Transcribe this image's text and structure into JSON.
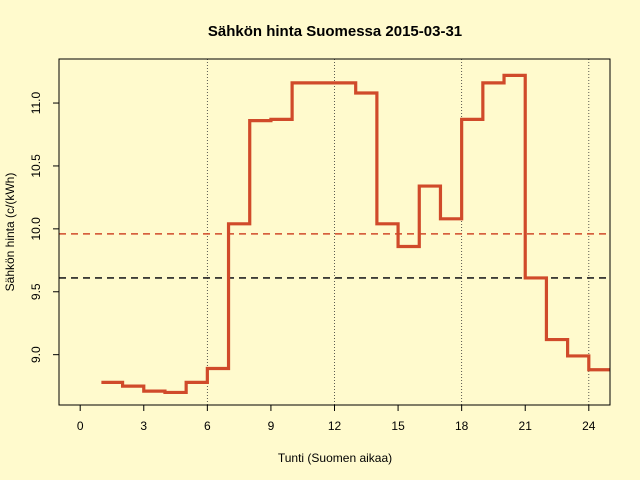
{
  "chart_data": {
    "type": "line",
    "title": "Sähkön hinta Suomessa 2015-03-31",
    "xlabel": "Tunti (Suomen aikaa)",
    "ylabel": "Sähkön hinta (c/(kWh)",
    "xlim": [
      -1,
      25
    ],
    "ylim": [
      8.6,
      11.35
    ],
    "x_ticks": [
      0,
      3,
      6,
      9,
      12,
      15,
      18,
      21,
      24
    ],
    "y_ticks": [
      9.0,
      9.5,
      10.0,
      10.5,
      11.0
    ],
    "x_tick_labels": [
      "0",
      "3",
      "6",
      "9",
      "12",
      "15",
      "18",
      "21",
      "24"
    ],
    "y_tick_labels": [
      "9.0",
      "9.5",
      "10.0",
      "10.5",
      "11.0"
    ],
    "vertical_gridlines_x": [
      6,
      12,
      18,
      24
    ],
    "series": [
      {
        "style": "step",
        "color": "#d04a2a",
        "points": [
          [
            1,
            8.78
          ],
          [
            2,
            8.75
          ],
          [
            3,
            8.71
          ],
          [
            4,
            8.7
          ],
          [
            5,
            8.78
          ],
          [
            6,
            8.89
          ],
          [
            7,
            10.04
          ],
          [
            8,
            10.86
          ],
          [
            9,
            10.87
          ],
          [
            10,
            11.16
          ],
          [
            11,
            11.16
          ],
          [
            12,
            11.16
          ],
          [
            13,
            11.08
          ],
          [
            14,
            10.04
          ],
          [
            15,
            9.86
          ],
          [
            16,
            10.34
          ],
          [
            17,
            10.08
          ],
          [
            18,
            10.87
          ],
          [
            19,
            11.16
          ],
          [
            20,
            11.22
          ],
          [
            21,
            9.61
          ],
          [
            22,
            9.12
          ],
          [
            23,
            8.99
          ],
          [
            24,
            8.88
          ],
          [
            25,
            8.88
          ]
        ]
      }
    ],
    "reference_lines": [
      {
        "y": 9.96,
        "color": "#d04a2a",
        "dash": true
      },
      {
        "y": 9.61,
        "color": "#222222",
        "dash": true
      }
    ]
  }
}
